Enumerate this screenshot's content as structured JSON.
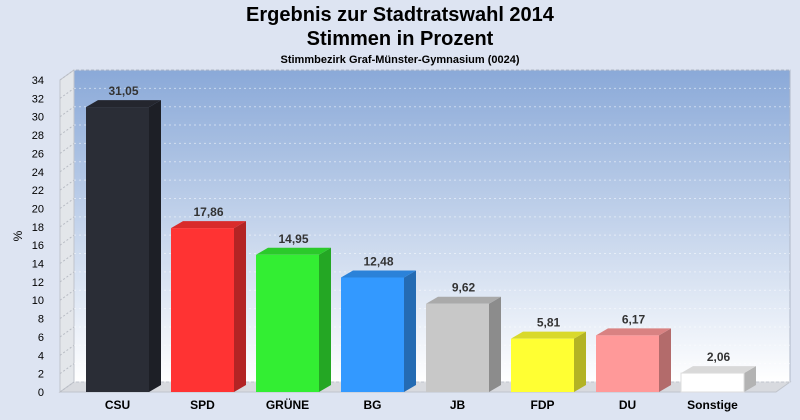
{
  "chart_data": {
    "type": "bar",
    "title": "Ergebnis zur Stadtratswahl 2014",
    "subtitle": "Stimmen in Prozent",
    "subsubtitle": "Stimmbezirk Graf-Münster-Gymnasium (0024)",
    "ylabel": "%",
    "xlabel": "",
    "ylim": [
      0,
      34
    ],
    "yticks": [
      0,
      2,
      4,
      6,
      8,
      10,
      12,
      14,
      16,
      18,
      20,
      22,
      24,
      26,
      28,
      30,
      32,
      34
    ],
    "grid": true,
    "categories": [
      "CSU",
      "SPD",
      "GRÜNE",
      "BG",
      "JB",
      "FDP",
      "DU",
      "Sonstige"
    ],
    "values": [
      31.05,
      17.86,
      14.95,
      12.48,
      9.62,
      5.81,
      6.17,
      2.06
    ],
    "value_labels": [
      "31,05",
      "17,86",
      "14,95",
      "12,48",
      "9,62",
      "5,81",
      "6,17",
      "2,06"
    ],
    "colors": [
      "#2a2d36",
      "#ff3333",
      "#33ee33",
      "#3399ff",
      "#c8c8c8",
      "#ffff33",
      "#ff9999",
      "#ffffff"
    ]
  }
}
